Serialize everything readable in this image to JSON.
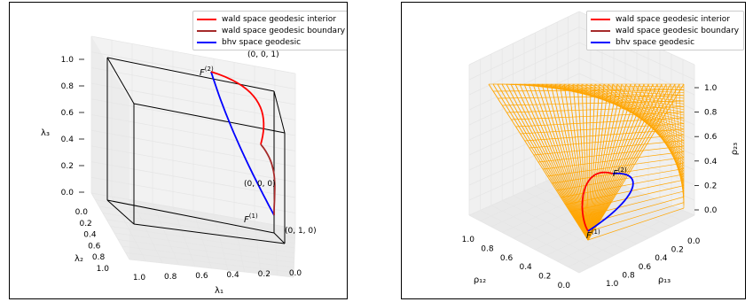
{
  "chart_data": [
    {
      "type": "line",
      "subtype": "3d",
      "legend": {
        "placement": "top-right",
        "entries": [
          {
            "label": "wald space geodesic interior",
            "color": "#ff0000"
          },
          {
            "label": "wald space geodesic boundary",
            "color": "#a52a2a"
          },
          {
            "label": "bhv space geodesic",
            "color": "#0000ff"
          }
        ]
      },
      "axes": {
        "x": {
          "label": "λ₁",
          "ticks": [
            "1.0",
            "0.8",
            "0.6",
            "0.4",
            "0.2",
            "0.0"
          ]
        },
        "y": {
          "label": "λ₂",
          "ticks": [
            "0.0",
            "0.2",
            "0.4",
            "0.6",
            "0.8",
            "1.0"
          ]
        },
        "z": {
          "label": "λ₃",
          "ticks": [
            "0.0",
            "0.2",
            "0.4",
            "0.6",
            "0.8",
            "1.0"
          ]
        }
      },
      "point_labels": [
        {
          "text": "F",
          "sup": "(2)"
        },
        {
          "text": "F",
          "sup": "(1)"
        },
        {
          "text": "(0, 0, 1)"
        },
        {
          "text": "(0, 0, 0)"
        },
        {
          "text": "(0, 1, 0)"
        }
      ],
      "grid": true
    },
    {
      "type": "line",
      "subtype": "3d",
      "legend": {
        "placement": "top-right",
        "entries": [
          {
            "label": "wald space geodesic interior",
            "color": "#ff0000"
          },
          {
            "label": "wald space geodesic boundary",
            "color": "#a52a2a"
          },
          {
            "label": "bhv space geodesic",
            "color": "#0000ff"
          }
        ]
      },
      "axes": {
        "x": {
          "label": "ρ₁₂",
          "ticks": [
            "1.0",
            "0.8",
            "0.6",
            "0.4",
            "0.2",
            "0.0"
          ]
        },
        "y": {
          "label": "ρ₁₃",
          "ticks": [
            "1.0",
            "0.8",
            "0.6",
            "0.4",
            "0.2",
            "0.0"
          ]
        },
        "z": {
          "label": "ρ₂₃",
          "ticks": [
            "0.0",
            "0.2",
            "0.4",
            "0.6",
            "0.8",
            "1.0"
          ]
        }
      },
      "point_labels": [
        {
          "text": "F",
          "sup": "(2)"
        },
        {
          "text": "F",
          "sup": "(1)"
        }
      ],
      "surface_color": "#ffa500",
      "grid": true
    }
  ]
}
